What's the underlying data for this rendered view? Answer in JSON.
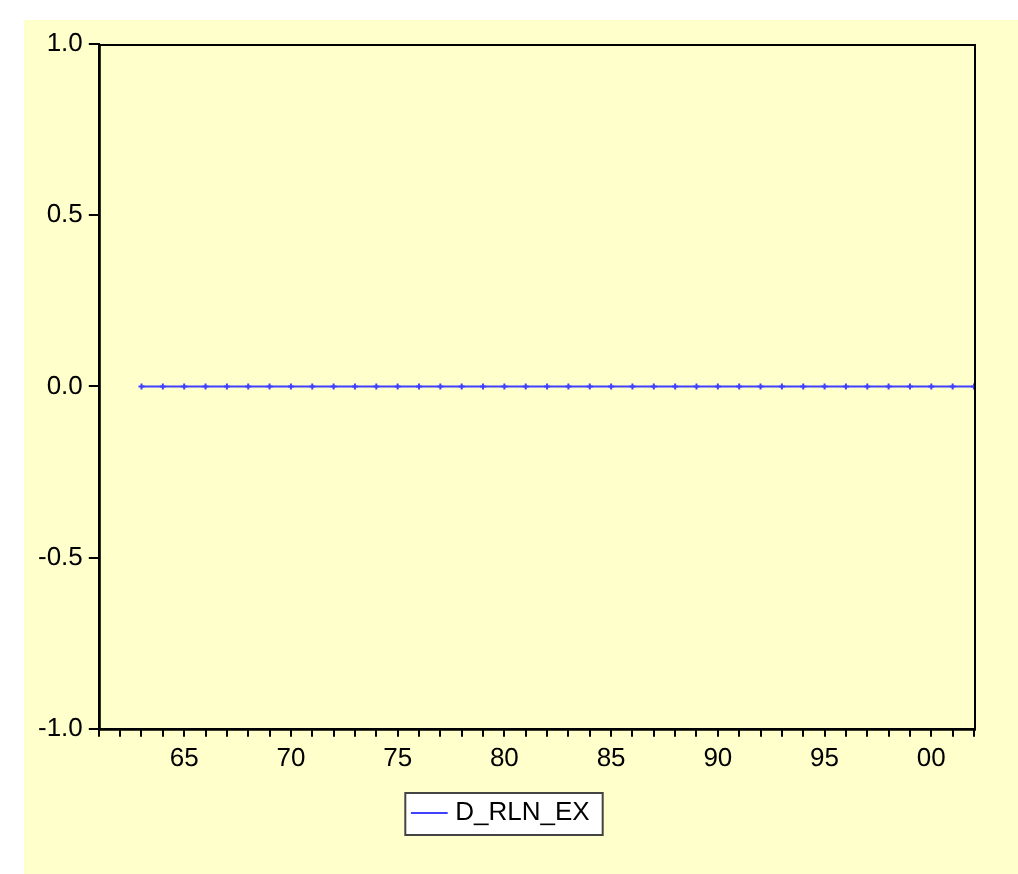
{
  "chart_data": {
    "type": "line",
    "x": [
      1963,
      1964,
      1965,
      1966,
      1967,
      1968,
      1969,
      1970,
      1971,
      1972,
      1973,
      1974,
      1975,
      1976,
      1977,
      1978,
      1979,
      1980,
      1981,
      1982,
      1983,
      1984,
      1985,
      1986,
      1987,
      1988,
      1989,
      1990,
      1991,
      1992,
      1993,
      1994,
      1995,
      1996,
      1997,
      1998,
      1999,
      2000,
      2001,
      2002
    ],
    "series": [
      {
        "name": "D_RLN_EX",
        "color": "#4040ff",
        "values": [
          0,
          0,
          0,
          0,
          0,
          0,
          0,
          0,
          0,
          0,
          0,
          0,
          0,
          0,
          0,
          0,
          0,
          0,
          0,
          0,
          0,
          0,
          0,
          0,
          0,
          0,
          0,
          0,
          0,
          0,
          0,
          0,
          0,
          0,
          0,
          0,
          0,
          0,
          0,
          0
        ]
      }
    ],
    "xlim": [
      1961,
      2002
    ],
    "xticks": [
      {
        "value": 1961,
        "label": null
      },
      {
        "value": 1962,
        "label": null
      },
      {
        "value": 1963,
        "label": null
      },
      {
        "value": 1964,
        "label": null
      },
      {
        "value": 1965,
        "label": "65"
      },
      {
        "value": 1966,
        "label": null
      },
      {
        "value": 1967,
        "label": null
      },
      {
        "value": 1968,
        "label": null
      },
      {
        "value": 1969,
        "label": null
      },
      {
        "value": 1970,
        "label": "70"
      },
      {
        "value": 1971,
        "label": null
      },
      {
        "value": 1972,
        "label": null
      },
      {
        "value": 1973,
        "label": null
      },
      {
        "value": 1974,
        "label": null
      },
      {
        "value": 1975,
        "label": "75"
      },
      {
        "value": 1976,
        "label": null
      },
      {
        "value": 1977,
        "label": null
      },
      {
        "value": 1978,
        "label": null
      },
      {
        "value": 1979,
        "label": null
      },
      {
        "value": 1980,
        "label": "80"
      },
      {
        "value": 1981,
        "label": null
      },
      {
        "value": 1982,
        "label": null
      },
      {
        "value": 1983,
        "label": null
      },
      {
        "value": 1984,
        "label": null
      },
      {
        "value": 1985,
        "label": "85"
      },
      {
        "value": 1986,
        "label": null
      },
      {
        "value": 1987,
        "label": null
      },
      {
        "value": 1988,
        "label": null
      },
      {
        "value": 1989,
        "label": null
      },
      {
        "value": 1990,
        "label": "90"
      },
      {
        "value": 1991,
        "label": null
      },
      {
        "value": 1992,
        "label": null
      },
      {
        "value": 1993,
        "label": null
      },
      {
        "value": 1994,
        "label": null
      },
      {
        "value": 1995,
        "label": "95"
      },
      {
        "value": 1996,
        "label": null
      },
      {
        "value": 1997,
        "label": null
      },
      {
        "value": 1998,
        "label": null
      },
      {
        "value": 1999,
        "label": null
      },
      {
        "value": 2000,
        "label": "00"
      },
      {
        "value": 2001,
        "label": null
      },
      {
        "value": 2002,
        "label": null
      }
    ],
    "ylim": [
      -1,
      1
    ],
    "yticks": [
      {
        "value": -1,
        "label": "-1.0"
      },
      {
        "value": -0.5,
        "label": "-0.5"
      },
      {
        "value": 0,
        "label": "0.0"
      },
      {
        "value": 0.5,
        "label": "0.5"
      },
      {
        "value": 1,
        "label": "1.0"
      }
    ],
    "grid": false,
    "legend": "bottom",
    "marker": "cross",
    "line_style": "solid"
  }
}
